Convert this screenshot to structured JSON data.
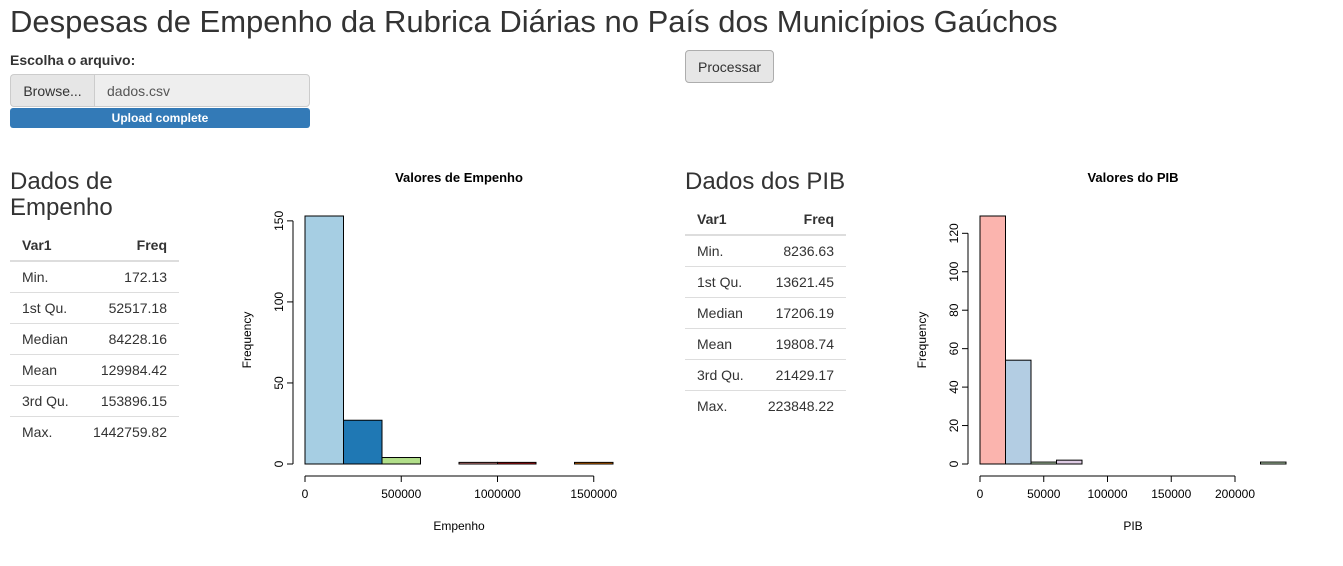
{
  "page": {
    "title": "Despesas de Empenho da Rubrica Diárias no País dos Municípios Gaúchos"
  },
  "upload": {
    "label": "Escolha o arquivo:",
    "browse_label": "Browse...",
    "file_name": "dados.csv",
    "progress_text": "Upload complete",
    "progress_fraction": 1.0
  },
  "process_button": "Processar",
  "empenho": {
    "heading_line1": "Dados de",
    "heading_line2": "Empenho",
    "columns": [
      "Var1",
      "Freq"
    ],
    "rows": [
      [
        "Min.",
        "172.13"
      ],
      [
        "1st Qu.",
        "52517.18"
      ],
      [
        "Median",
        "84228.16"
      ],
      [
        "Mean",
        "129984.42"
      ],
      [
        "3rd Qu.",
        "153896.15"
      ],
      [
        "Max.",
        "1442759.82"
      ]
    ]
  },
  "pib": {
    "heading": "Dados dos PIB",
    "columns": [
      "Var1",
      "Freq"
    ],
    "rows": [
      [
        "Min.",
        "8236.63"
      ],
      [
        "1st Qu.",
        "13621.45"
      ],
      [
        "Median",
        "17206.19"
      ],
      [
        "Mean",
        "19808.74"
      ],
      [
        "3rd Qu.",
        "21429.17"
      ],
      [
        "Max.",
        "223848.22"
      ]
    ]
  },
  "chart_data": [
    {
      "type": "bar",
      "title": "Valores de Empenho",
      "xlabel": "Empenho",
      "ylabel": "Frequency",
      "bins": [
        [
          0,
          200000
        ],
        [
          200000,
          400000
        ],
        [
          400000,
          600000
        ],
        [
          600000,
          800000
        ],
        [
          800000,
          1000000
        ],
        [
          1000000,
          1200000
        ],
        [
          1200000,
          1400000
        ],
        [
          1400000,
          1600000
        ]
      ],
      "values": [
        153,
        27,
        4,
        0,
        1,
        1,
        0,
        1
      ],
      "colors": [
        "#a6cee3",
        "#1f78b4",
        "#b2df8a",
        "#33a02c",
        "#fb9a99",
        "#e31a1c",
        "#fdbf6f",
        "#ff7f00"
      ],
      "xlim": [
        0,
        1600000
      ],
      "ylim": [
        0,
        153
      ],
      "xticks": [
        0,
        500000,
        1000000,
        1500000
      ],
      "xtick_labels": [
        "0",
        "500000",
        "1000000",
        "1500000"
      ],
      "yticks": [
        0,
        50,
        100,
        150
      ],
      "ytick_labels": [
        "0",
        "50",
        "100",
        "150"
      ]
    },
    {
      "type": "bar",
      "title": "Valores do PIB",
      "xlabel": "PIB",
      "ylabel": "Frequency",
      "bins": [
        [
          0,
          20000
        ],
        [
          20000,
          40000
        ],
        [
          40000,
          60000
        ],
        [
          60000,
          80000
        ],
        [
          80000,
          100000
        ],
        [
          100000,
          120000
        ],
        [
          120000,
          140000
        ],
        [
          140000,
          160000
        ],
        [
          160000,
          180000
        ],
        [
          180000,
          200000
        ],
        [
          200000,
          220000
        ],
        [
          220000,
          240000
        ]
      ],
      "values": [
        129,
        54,
        1,
        2,
        0,
        0,
        0,
        0,
        0,
        0,
        0,
        1
      ],
      "colors": [
        "#fbb4ae",
        "#b3cde3",
        "#ccebc5",
        "#decbe4",
        "#fed9a6",
        "#ffffcc",
        "#e5d8bd",
        "#fddaec",
        "#f2f2f2",
        "#fbb4ae",
        "#b3cde3",
        "#ccebc5"
      ],
      "xlim": [
        0,
        240000
      ],
      "ylim": [
        0,
        129
      ],
      "xticks": [
        0,
        50000,
        100000,
        150000,
        200000
      ],
      "xtick_labels": [
        "0",
        "50000",
        "100000",
        "150000",
        "200000"
      ],
      "yticks": [
        0,
        20,
        40,
        60,
        80,
        100,
        120
      ],
      "ytick_labels": [
        "0",
        "20",
        "40",
        "60",
        "80",
        "100",
        "120"
      ]
    }
  ]
}
